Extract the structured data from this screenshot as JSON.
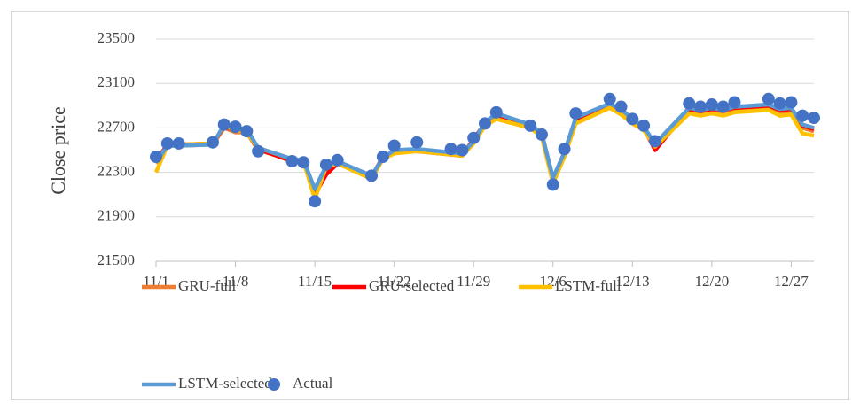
{
  "chart_data": {
    "type": "line",
    "y_label": "Close price",
    "x": [
      "11/1",
      "11/2",
      "11/3",
      "11/6",
      "11/7",
      "11/8",
      "11/9",
      "11/10",
      "11/13",
      "11/14",
      "11/15",
      "11/16",
      "11/17",
      "11/20",
      "11/21",
      "11/22",
      "11/24",
      "11/27",
      "11/28",
      "11/29",
      "11/30",
      "12/1",
      "12/4",
      "12/5",
      "12/6",
      "12/7",
      "12/8",
      "12/11",
      "12/12",
      "12/13",
      "12/14",
      "12/15",
      "12/18",
      "12/19",
      "12/20",
      "12/21",
      "12/22",
      "12/25",
      "12/26",
      "12/27",
      "12/28",
      "12/29"
    ],
    "xlim": [
      "11/1",
      "12/29"
    ],
    "xticks": [
      "11/1",
      "11/8",
      "11/15",
      "11/22",
      "11/29",
      "12/6",
      "12/13",
      "12/20",
      "12/27"
    ],
    "ylim": [
      21500,
      23500
    ],
    "yticks": [
      21500,
      21900,
      22300,
      22700,
      23100,
      23500
    ],
    "grid": true,
    "series": [
      {
        "name": "GRU-full",
        "color": "#ED7D31",
        "marker": "line",
        "values": [
          22380,
          22540,
          22540,
          22550,
          22700,
          22660,
          22660,
          22500,
          22410,
          22400,
          22080,
          22330,
          22390,
          22250,
          22440,
          22480,
          22500,
          22470,
          22460,
          22570,
          22740,
          22800,
          22720,
          22640,
          22230,
          22470,
          22770,
          22900,
          22840,
          22760,
          22700,
          22540,
          22860,
          22840,
          22860,
          22840,
          22870,
          22880,
          22840,
          22850,
          22700,
          22670
        ]
      },
      {
        "name": "GRU-selected",
        "color": "#FF0000",
        "marker": "line",
        "values": [
          22400,
          22550,
          22550,
          22560,
          22710,
          22680,
          22670,
          22510,
          22400,
          22400,
          22100,
          22280,
          22380,
          22260,
          22440,
          22490,
          22490,
          22460,
          22450,
          22600,
          22740,
          22810,
          22730,
          22650,
          22240,
          22480,
          22780,
          22920,
          22860,
          22770,
          22700,
          22500,
          22870,
          22850,
          22870,
          22860,
          22880,
          22900,
          22860,
          22870,
          22720,
          22690
        ]
      },
      {
        "name": "LSTM-full",
        "color": "#FFC000",
        "marker": "line",
        "values": [
          22300,
          22540,
          22550,
          22560,
          22720,
          22680,
          22660,
          22520,
          22420,
          22400,
          22060,
          22350,
          22380,
          22240,
          22420,
          22470,
          22490,
          22460,
          22450,
          22560,
          22720,
          22780,
          22700,
          22620,
          22200,
          22440,
          22740,
          22880,
          22820,
          22740,
          22680,
          22530,
          22830,
          22810,
          22830,
          22810,
          22840,
          22860,
          22810,
          22820,
          22650,
          22630
        ]
      },
      {
        "name": "LSTM-selected",
        "color": "#5B9BD5",
        "marker": "line",
        "values": [
          22390,
          22540,
          22540,
          22550,
          22730,
          22700,
          22690,
          22520,
          22420,
          22410,
          22150,
          22360,
          22400,
          22270,
          22430,
          22500,
          22510,
          22480,
          22470,
          22580,
          22750,
          22830,
          22730,
          22650,
          22250,
          22480,
          22790,
          22920,
          22870,
          22780,
          22710,
          22560,
          22880,
          22860,
          22880,
          22860,
          22890,
          22910,
          22870,
          22880,
          22730,
          22700
        ]
      },
      {
        "name": "Actual",
        "color": "#4472C4",
        "marker": "dot",
        "values": [
          22440,
          22560,
          22560,
          22570,
          22730,
          22710,
          22670,
          22490,
          22400,
          22390,
          22040,
          22370,
          22410,
          22270,
          22440,
          22540,
          22570,
          22510,
          22500,
          22610,
          22740,
          22840,
          22720,
          22640,
          22190,
          22510,
          22830,
          22960,
          22890,
          22780,
          22720,
          22580,
          22920,
          22890,
          22910,
          22890,
          22930,
          22960,
          22920,
          22930,
          22810,
          22790
        ]
      }
    ]
  }
}
